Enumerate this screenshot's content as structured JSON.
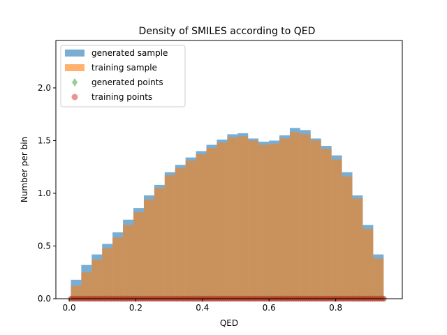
{
  "chart_data": {
    "type": "bar",
    "title": "Density of SMILES according to QED",
    "xlabel": "QED",
    "ylabel": "Number per bin",
    "xlim": [
      -0.04,
      1.0
    ],
    "ylim": [
      0,
      2.45
    ],
    "x_ticks": [
      "0.0",
      "0.2",
      "0.4",
      "0.6",
      "0.8"
    ],
    "x_tick_values": [
      0.0,
      0.2,
      0.4,
      0.6,
      0.8
    ],
    "y_ticks": [
      "0.0",
      "0.5",
      "1.0",
      "1.5",
      "2.0"
    ],
    "y_tick_values": [
      0.0,
      0.5,
      1.0,
      1.5,
      2.0
    ],
    "bin_start": 0.005,
    "bin_width": 0.0313,
    "bin_centers": [
      0.02,
      0.05,
      0.08,
      0.11,
      0.14,
      0.17,
      0.2,
      0.23,
      0.27,
      0.3,
      0.33,
      0.36,
      0.39,
      0.42,
      0.45,
      0.49,
      0.52,
      0.55,
      0.58,
      0.61,
      0.64,
      0.67,
      0.71,
      0.74,
      0.77,
      0.8,
      0.83,
      0.86,
      0.89,
      0.93
    ],
    "legend_position": "upper-left",
    "grid": false,
    "series": [
      {
        "name": "generated sample",
        "kind": "histogram",
        "color": "#1f77b4",
        "alpha": 0.6,
        "values": [
          0.18,
          0.32,
          0.42,
          0.52,
          0.63,
          0.75,
          0.86,
          0.98,
          1.08,
          1.2,
          1.27,
          1.34,
          1.4,
          1.46,
          1.51,
          1.56,
          1.57,
          1.52,
          1.49,
          1.5,
          1.55,
          1.62,
          1.6,
          1.52,
          1.45,
          1.36,
          1.2,
          0.98,
          0.7,
          0.42
        ]
      },
      {
        "name": "training sample",
        "kind": "histogram",
        "color": "#ff7f0e",
        "alpha": 0.6,
        "values": [
          0.12,
          0.25,
          0.37,
          0.48,
          0.58,
          0.7,
          0.82,
          0.94,
          1.05,
          1.17,
          1.24,
          1.31,
          1.37,
          1.43,
          1.48,
          1.53,
          1.54,
          1.5,
          1.46,
          1.47,
          1.52,
          1.58,
          1.56,
          1.5,
          1.42,
          1.32,
          1.16,
          0.95,
          0.66,
          0.38
        ]
      },
      {
        "name": "generated points",
        "kind": "points",
        "marker": "diamond",
        "color": "#2ca02c",
        "alpha": 0.5,
        "y": 0.0
      },
      {
        "name": "training points",
        "kind": "points",
        "marker": "circle",
        "color": "#d62728",
        "alpha": 0.5,
        "y": 0.0
      }
    ],
    "points_range": [
      0.005,
      0.945
    ]
  }
}
